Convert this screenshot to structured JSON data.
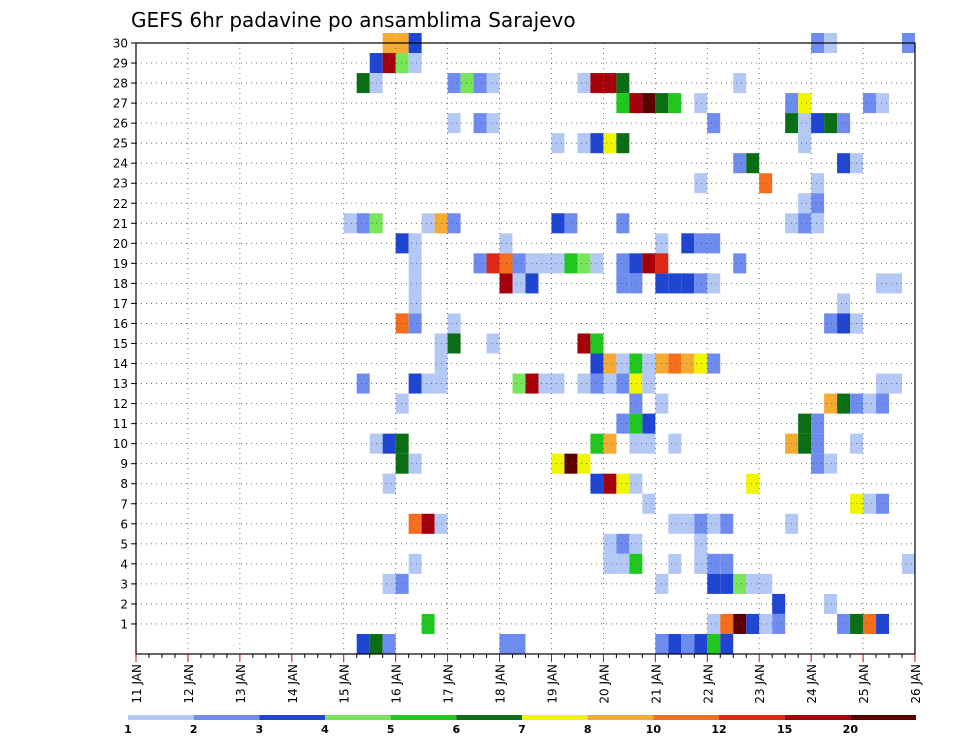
{
  "chart_data": {
    "type": "heatmap",
    "title": "GEFS 6hr padavine po ansamblima Sarajevo",
    "xlabel": "",
    "ylabel": "",
    "x_ticks": [
      "11 JAN",
      "12 JAN",
      "13 JAN",
      "14 JAN",
      "15 JAN",
      "16 JAN",
      "17 JAN",
      "18 JAN",
      "19 JAN",
      "20 JAN",
      "21 JAN",
      "22 JAN",
      "23 JAN",
      "24 JAN",
      "25 JAN",
      "26 JAN"
    ],
    "y_ticks": [
      "1",
      "2",
      "3",
      "4",
      "5",
      "6",
      "7",
      "8",
      "9",
      "10",
      "11",
      "12",
      "13",
      "14",
      "15",
      "16",
      "17",
      "18",
      "19",
      "20",
      "21",
      "22",
      "23",
      "24",
      "25",
      "26",
      "27",
      "28",
      "29",
      "30"
    ],
    "x_range": [
      "11 JAN 00Z",
      "26 JAN 00Z"
    ],
    "y_range": [
      0,
      30
    ],
    "time_step_hours": 6,
    "grid": true,
    "legend_position": "bottom",
    "colorbar": {
      "labels": [
        "1",
        "2",
        "3",
        "4",
        "5",
        "6",
        "7",
        "8",
        "10",
        "12",
        "15",
        "20"
      ],
      "colors": [
        "#b4c8f5",
        "#6e8cf0",
        "#1e46d2",
        "#78e65a",
        "#20c81e",
        "#0a6e14",
        "#f0f500",
        "#f5aa32",
        "#f56e1e",
        "#dc2814",
        "#a5000a",
        "#5a0000"
      ]
    },
    "cells": [
      [
        30,
        "15 JAN 18Z",
        8
      ],
      [
        30,
        "16 JAN 00Z",
        8
      ],
      [
        30,
        "16 JAN 06Z",
        3
      ],
      [
        30,
        "24 JAN 00Z",
        2
      ],
      [
        30,
        "24 JAN 06Z",
        1
      ],
      [
        30,
        "25 JAN 18Z",
        2
      ],
      [
        29,
        "15 JAN 12Z",
        3
      ],
      [
        29,
        "15 JAN 18Z",
        15
      ],
      [
        29,
        "16 JAN 00Z",
        4
      ],
      [
        29,
        "16 JAN 06Z",
        1
      ],
      [
        28,
        "15 JAN 06Z",
        6
      ],
      [
        28,
        "15 JAN 12Z",
        1
      ],
      [
        28,
        "17 JAN 00Z",
        2
      ],
      [
        28,
        "17 JAN 06Z",
        4
      ],
      [
        28,
        "17 JAN 12Z",
        2
      ],
      [
        28,
        "17 JAN 18Z",
        1
      ],
      [
        28,
        "19 JAN 12Z",
        1
      ],
      [
        28,
        "19 JAN 18Z",
        15
      ],
      [
        28,
        "20 JAN 00Z",
        15
      ],
      [
        28,
        "20 JAN 06Z",
        6
      ],
      [
        28,
        "22 JAN 12Z",
        1
      ],
      [
        27,
        "20 JAN 06Z",
        5
      ],
      [
        27,
        "20 JAN 12Z",
        15
      ],
      [
        27,
        "20 JAN 18Z",
        20
      ],
      [
        27,
        "21 JAN 00Z",
        6
      ],
      [
        27,
        "21 JAN 06Z",
        5
      ],
      [
        27,
        "21 JAN 18Z",
        1
      ],
      [
        27,
        "23 JAN 12Z",
        2
      ],
      [
        27,
        "23 JAN 18Z",
        7
      ],
      [
        27,
        "25 JAN 00Z",
        2
      ],
      [
        27,
        "25 JAN 06Z",
        1
      ],
      [
        26,
        "17 JAN 00Z",
        1
      ],
      [
        26,
        "17 JAN 12Z",
        2
      ],
      [
        26,
        "17 JAN 18Z",
        1
      ],
      [
        26,
        "22 JAN 00Z",
        2
      ],
      [
        26,
        "23 JAN 12Z",
        6
      ],
      [
        26,
        "23 JAN 18Z",
        1
      ],
      [
        26,
        "24 JAN 00Z",
        3
      ],
      [
        26,
        "24 JAN 06Z",
        6
      ],
      [
        26,
        "24 JAN 12Z",
        2
      ],
      [
        25,
        "19 JAN 12Z",
        1
      ],
      [
        25,
        "19 JAN 00Z",
        1
      ],
      [
        25,
        "19 JAN 18Z",
        3
      ],
      [
        25,
        "20 JAN 00Z",
        7
      ],
      [
        25,
        "20 JAN 06Z",
        6
      ],
      [
        25,
        "23 JAN 18Z",
        1
      ],
      [
        24,
        "22 JAN 12Z",
        2
      ],
      [
        24,
        "22 JAN 18Z",
        6
      ],
      [
        24,
        "24 JAN 12Z",
        3
      ],
      [
        24,
        "24 JAN 18Z",
        1
      ],
      [
        23,
        "21 JAN 18Z",
        1
      ],
      [
        23,
        "23 JAN 00Z",
        10
      ],
      [
        23,
        "24 JAN 00Z",
        1
      ],
      [
        22,
        "23 JAN 18Z",
        1
      ],
      [
        22,
        "24 JAN 00Z",
        2
      ],
      [
        21,
        "15 JAN 00Z",
        1
      ],
      [
        21,
        "15 JAN 06Z",
        2
      ],
      [
        21,
        "15 JAN 12Z",
        4
      ],
      [
        21,
        "16 JAN 12Z",
        1
      ],
      [
        21,
        "16 JAN 18Z",
        8
      ],
      [
        21,
        "17 JAN 00Z",
        2
      ],
      [
        21,
        "19 JAN 00Z",
        3
      ],
      [
        21,
        "19 JAN 06Z",
        2
      ],
      [
        21,
        "20 JAN 06Z",
        2
      ],
      [
        21,
        "23 JAN 12Z",
        1
      ],
      [
        21,
        "23 JAN 18Z",
        2
      ],
      [
        21,
        "24 JAN 00Z",
        1
      ],
      [
        20,
        "16 JAN 00Z",
        3
      ],
      [
        20,
        "16 JAN 06Z",
        1
      ],
      [
        20,
        "18 JAN 00Z",
        1
      ],
      [
        20,
        "21 JAN 00Z",
        1
      ],
      [
        20,
        "21 JAN 12Z",
        3
      ],
      [
        20,
        "21 JAN 18Z",
        2
      ],
      [
        20,
        "22 JAN 00Z",
        2
      ],
      [
        19,
        "16 JAN 06Z",
        1
      ],
      [
        19,
        "17 JAN 12Z",
        2
      ],
      [
        19,
        "17 JAN 18Z",
        12
      ],
      [
        19,
        "18 JAN 00Z",
        10
      ],
      [
        19,
        "18 JAN 06Z",
        2
      ],
      [
        19,
        "18 JAN 12Z",
        1
      ],
      [
        19,
        "18 JAN 18Z",
        1
      ],
      [
        19,
        "19 JAN 00Z",
        1
      ],
      [
        19,
        "19 JAN 06Z",
        5
      ],
      [
        19,
        "19 JAN 12Z",
        4
      ],
      [
        19,
        "19 JAN 18Z",
        1
      ],
      [
        19,
        "20 JAN 06Z",
        2
      ],
      [
        19,
        "20 JAN 12Z",
        3
      ],
      [
        19,
        "20 JAN 18Z",
        15
      ],
      [
        19,
        "21 JAN 00Z",
        12
      ],
      [
        19,
        "22 JAN 12Z",
        2
      ],
      [
        18,
        "16 JAN 06Z",
        1
      ],
      [
        18,
        "18 JAN 00Z",
        15
      ],
      [
        18,
        "18 JAN 06Z",
        1
      ],
      [
        18,
        "18 JAN 12Z",
        3
      ],
      [
        18,
        "20 JAN 06Z",
        2
      ],
      [
        18,
        "20 JAN 12Z",
        2
      ],
      [
        18,
        "21 JAN 00Z",
        3
      ],
      [
        18,
        "21 JAN 06Z",
        3
      ],
      [
        18,
        "21 JAN 12Z",
        3
      ],
      [
        18,
        "21 JAN 18Z",
        2
      ],
      [
        18,
        "22 JAN 00Z",
        1
      ],
      [
        18,
        "25 JAN 06Z",
        1
      ],
      [
        18,
        "25 JAN 12Z",
        1
      ],
      [
        17,
        "16 JAN 06Z",
        1
      ],
      [
        17,
        "24 JAN 12Z",
        1
      ],
      [
        16,
        "16 JAN 00Z",
        10
      ],
      [
        16,
        "16 JAN 06Z",
        2
      ],
      [
        16,
        "17 JAN 00Z",
        1
      ],
      [
        16,
        "24 JAN 06Z",
        2
      ],
      [
        16,
        "24 JAN 12Z",
        3
      ],
      [
        16,
        "24 JAN 18Z",
        1
      ],
      [
        15,
        "16 JAN 18Z",
        1
      ],
      [
        15,
        "17 JAN 00Z",
        6
      ],
      [
        15,
        "17 JAN 18Z",
        1
      ],
      [
        15,
        "19 JAN 12Z",
        15
      ],
      [
        15,
        "19 JAN 18Z",
        5
      ],
      [
        14,
        "16 JAN 18Z",
        1
      ],
      [
        14,
        "19 JAN 18Z",
        3
      ],
      [
        14,
        "20 JAN 00Z",
        8
      ],
      [
        14,
        "20 JAN 06Z",
        1
      ],
      [
        14,
        "20 JAN 12Z",
        5
      ],
      [
        14,
        "20 JAN 18Z",
        1
      ],
      [
        14,
        "21 JAN 00Z",
        8
      ],
      [
        14,
        "21 JAN 06Z",
        10
      ],
      [
        14,
        "21 JAN 12Z",
        8
      ],
      [
        14,
        "21 JAN 18Z",
        7
      ],
      [
        14,
        "22 JAN 00Z",
        2
      ],
      [
        13,
        "15 JAN 06Z",
        2
      ],
      [
        13,
        "16 JAN 06Z",
        3
      ],
      [
        13,
        "16 JAN 12Z",
        1
      ],
      [
        13,
        "16 JAN 18Z",
        1
      ],
      [
        13,
        "18 JAN 06Z",
        4
      ],
      [
        13,
        "18 JAN 12Z",
        15
      ],
      [
        13,
        "18 JAN 18Z",
        1
      ],
      [
        13,
        "19 JAN 00Z",
        1
      ],
      [
        13,
        "19 JAN 12Z",
        1
      ],
      [
        13,
        "19 JAN 18Z",
        2
      ],
      [
        13,
        "20 JAN 00Z",
        1
      ],
      [
        13,
        "20 JAN 06Z",
        2
      ],
      [
        13,
        "20 JAN 12Z",
        7
      ],
      [
        13,
        "20 JAN 18Z",
        1
      ],
      [
        13,
        "25 JAN 06Z",
        1
      ],
      [
        13,
        "25 JAN 12Z",
        1
      ],
      [
        12,
        "16 JAN 00Z",
        1
      ],
      [
        12,
        "20 JAN 12Z",
        2
      ],
      [
        12,
        "21 JAN 00Z",
        1
      ],
      [
        12,
        "24 JAN 06Z",
        8
      ],
      [
        12,
        "24 JAN 12Z",
        6
      ],
      [
        12,
        "24 JAN 18Z",
        2
      ],
      [
        12,
        "25 JAN 00Z",
        1
      ],
      [
        12,
        "25 JAN 06Z",
        2
      ],
      [
        11,
        "20 JAN 06Z",
        2
      ],
      [
        11,
        "20 JAN 12Z",
        5
      ],
      [
        11,
        "20 JAN 18Z",
        3
      ],
      [
        11,
        "23 JAN 18Z",
        6
      ],
      [
        11,
        "24 JAN 00Z",
        2
      ],
      [
        10,
        "15 JAN 12Z",
        1
      ],
      [
        10,
        "15 JAN 18Z",
        3
      ],
      [
        10,
        "16 JAN 00Z",
        6
      ],
      [
        10,
        "19 JAN 18Z",
        5
      ],
      [
        10,
        "20 JAN 00Z",
        8
      ],
      [
        10,
        "20 JAN 12Z",
        1
      ],
      [
        10,
        "20 JAN 18Z",
        1
      ],
      [
        10,
        "21 JAN 06Z",
        1
      ],
      [
        10,
        "23 JAN 12Z",
        8
      ],
      [
        10,
        "23 JAN 18Z",
        6
      ],
      [
        10,
        "24 JAN 00Z",
        2
      ],
      [
        10,
        "24 JAN 18Z",
        1
      ],
      [
        9,
        "16 JAN 00Z",
        6
      ],
      [
        9,
        "16 JAN 06Z",
        1
      ],
      [
        9,
        "19 JAN 00Z",
        7
      ],
      [
        9,
        "19 JAN 06Z",
        20
      ],
      [
        9,
        "19 JAN 12Z",
        7
      ],
      [
        9,
        "24 JAN 00Z",
        2
      ],
      [
        9,
        "24 JAN 06Z",
        1
      ],
      [
        8,
        "15 JAN 18Z",
        1
      ],
      [
        8,
        "19 JAN 18Z",
        3
      ],
      [
        8,
        "20 JAN 00Z",
        15
      ],
      [
        8,
        "20 JAN 06Z",
        7
      ],
      [
        8,
        "20 JAN 12Z",
        1
      ],
      [
        8,
        "22 JAN 18Z",
        7
      ],
      [
        7,
        "20 JAN 18Z",
        1
      ],
      [
        7,
        "24 JAN 18Z",
        7
      ],
      [
        7,
        "25 JAN 00Z",
        1
      ],
      [
        7,
        "25 JAN 06Z",
        2
      ],
      [
        6,
        "16 JAN 06Z",
        10
      ],
      [
        6,
        "16 JAN 12Z",
        15
      ],
      [
        6,
        "16 JAN 18Z",
        1
      ],
      [
        6,
        "21 JAN 06Z",
        1
      ],
      [
        6,
        "21 JAN 12Z",
        1
      ],
      [
        6,
        "21 JAN 18Z",
        2
      ],
      [
        6,
        "22 JAN 00Z",
        1
      ],
      [
        6,
        "22 JAN 06Z",
        2
      ],
      [
        6,
        "23 JAN 12Z",
        1
      ],
      [
        5,
        "20 JAN 00Z",
        1
      ],
      [
        5,
        "20 JAN 06Z",
        2
      ],
      [
        5,
        "20 JAN 12Z",
        1
      ],
      [
        5,
        "21 JAN 18Z",
        1
      ],
      [
        4,
        "16 JAN 06Z",
        1
      ],
      [
        4,
        "20 JAN 00Z",
        1
      ],
      [
        4,
        "20 JAN 06Z",
        1
      ],
      [
        4,
        "20 JAN 12Z",
        5
      ],
      [
        4,
        "21 JAN 06Z",
        1
      ],
      [
        4,
        "21 JAN 18Z",
        1
      ],
      [
        4,
        "22 JAN 00Z",
        2
      ],
      [
        4,
        "22 JAN 06Z",
        2
      ],
      [
        4,
        "25 JAN 18Z",
        1
      ],
      [
        3,
        "15 JAN 18Z",
        1
      ],
      [
        3,
        "16 JAN 00Z",
        2
      ],
      [
        3,
        "21 JAN 00Z",
        1
      ],
      [
        3,
        "22 JAN 00Z",
        3
      ],
      [
        3,
        "22 JAN 06Z",
        3
      ],
      [
        3,
        "22 JAN 12Z",
        4
      ],
      [
        3,
        "22 JAN 18Z",
        1
      ],
      [
        3,
        "23 JAN 00Z",
        1
      ],
      [
        2,
        "23 JAN 06Z",
        3
      ],
      [
        2,
        "24 JAN 06Z",
        1
      ],
      [
        1,
        "16 JAN 12Z",
        5
      ],
      [
        1,
        "22 JAN 00Z",
        1
      ],
      [
        1,
        "22 JAN 06Z",
        10
      ],
      [
        1,
        "22 JAN 12Z",
        20
      ],
      [
        1,
        "22 JAN 18Z",
        3
      ],
      [
        1,
        "23 JAN 00Z",
        1
      ],
      [
        1,
        "23 JAN 06Z",
        2
      ],
      [
        1,
        "24 JAN 12Z",
        2
      ],
      [
        1,
        "24 JAN 18Z",
        6
      ],
      [
        1,
        "25 JAN 00Z",
        10
      ],
      [
        1,
        "25 JAN 06Z",
        3
      ],
      [
        0,
        "15 JAN 06Z",
        3
      ],
      [
        0,
        "15 JAN 12Z",
        6
      ],
      [
        0,
        "15 JAN 18Z",
        2
      ],
      [
        0,
        "18 JAN 00Z",
        2
      ],
      [
        0,
        "18 JAN 06Z",
        2
      ],
      [
        0,
        "21 JAN 00Z",
        2
      ],
      [
        0,
        "21 JAN 06Z",
        3
      ],
      [
        0,
        "21 JAN 12Z",
        2
      ],
      [
        0,
        "21 JAN 18Z",
        3
      ],
      [
        0,
        "22 JAN 00Z",
        5
      ],
      [
        0,
        "22 JAN 06Z",
        3
      ]
    ]
  }
}
